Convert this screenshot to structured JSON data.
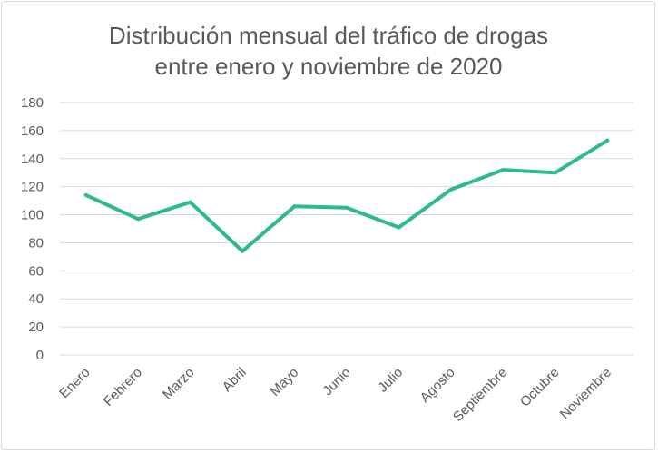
{
  "chart_data": {
    "type": "line",
    "title": [
      "Distribución mensual del tráfico de drogas",
      "entre enero y noviembre de 2020"
    ],
    "xlabel": "",
    "ylabel": "",
    "categories": [
      "Enero",
      "Febrero",
      "Marzo",
      "Abril",
      "Mayo",
      "Junio",
      "Julio",
      "Agosto",
      "Septiembre",
      "Octubre",
      "Noviembre"
    ],
    "series": [
      {
        "values": [
          114,
          97,
          109,
          74,
          106,
          105,
          91,
          118,
          132,
          130,
          153
        ],
        "color": "#2EBA8F"
      }
    ],
    "ylim": [
      0,
      180
    ],
    "yticks": [
      0,
      20,
      40,
      60,
      80,
      100,
      120,
      140,
      160,
      180
    ],
    "grid": true,
    "legend": "none"
  }
}
